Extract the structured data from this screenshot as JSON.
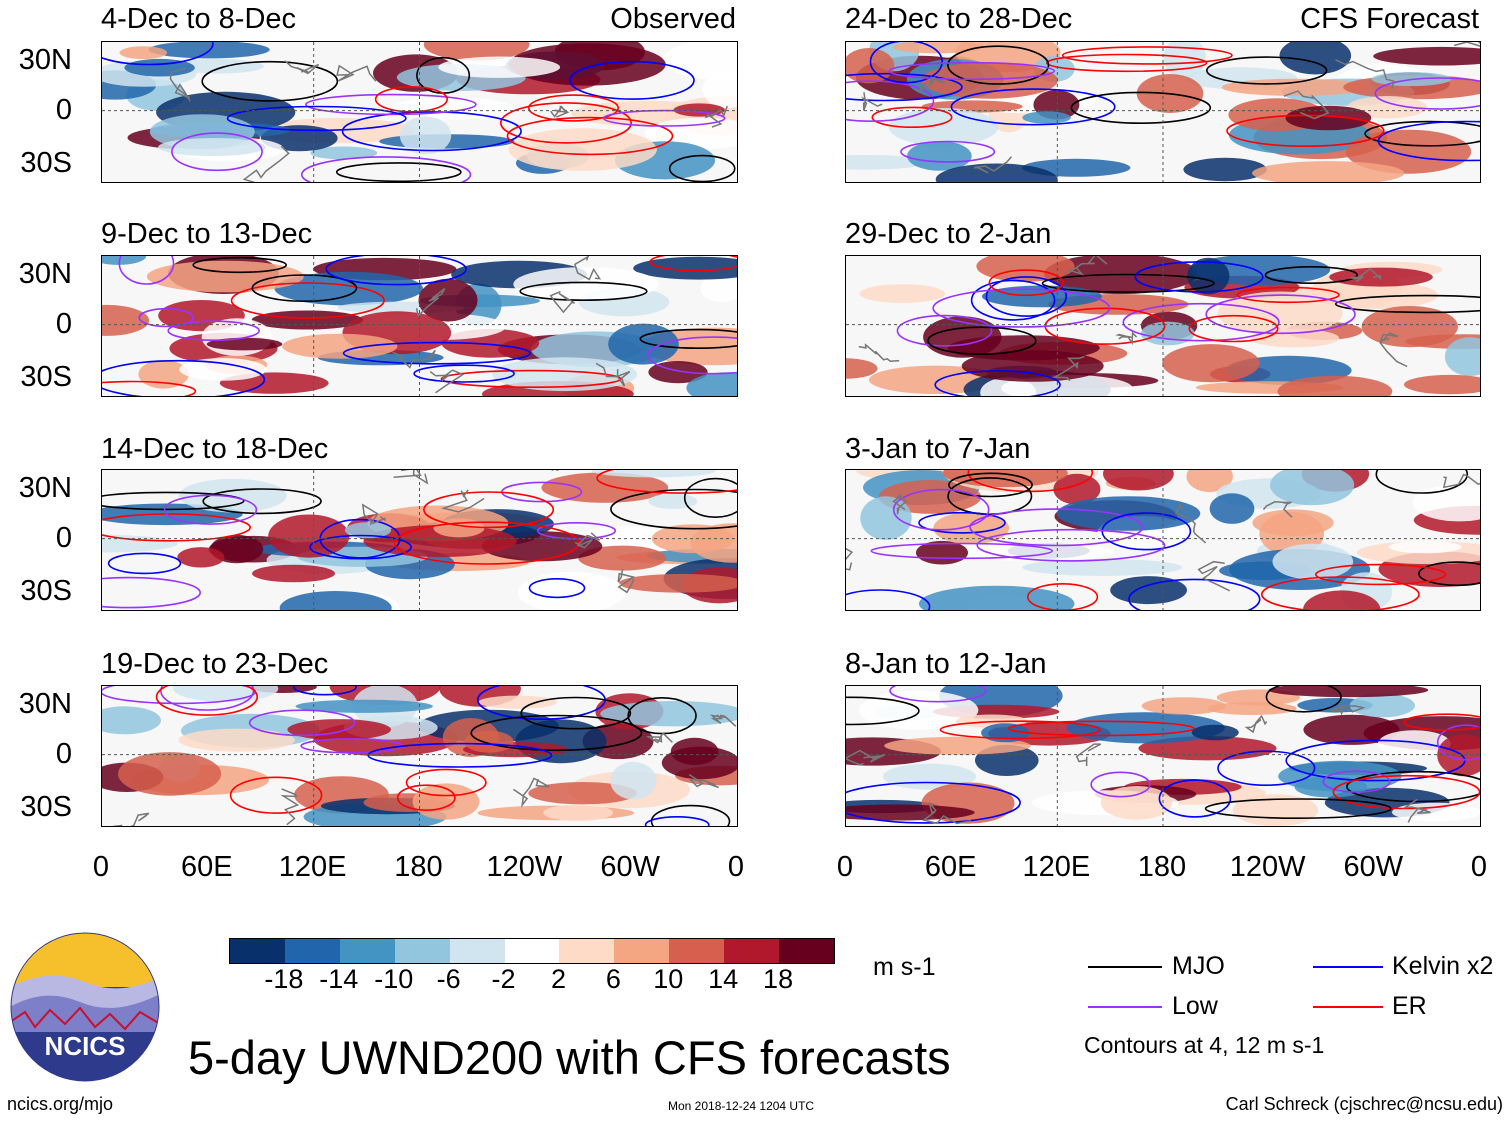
{
  "chart_data": {
    "type": "heatmap",
    "title": "5-day UWND200 with CFS forecasts",
    "units": "m s-1",
    "x_tick_labels": [
      "0",
      "60E",
      "120E",
      "180",
      "120W",
      "60W",
      "0"
    ],
    "y_tick_labels": [
      "30N",
      "0",
      "30S"
    ],
    "colorbar_ticks": [
      "-18",
      "-14",
      "-10",
      "-6",
      "-2",
      "2",
      "6",
      "10",
      "14",
      "18"
    ],
    "colorbar_colors": [
      "#08306b",
      "#2166ac",
      "#4393c3",
      "#92c5de",
      "#d1e5f0",
      "#ffffff",
      "#fddbc7",
      "#f4a582",
      "#d6604d",
      "#b2182b",
      "#67001f"
    ],
    "legend": [
      {
        "label": "MJO",
        "color": "#000000"
      },
      {
        "label": "Kelvin x2",
        "color": "#0000ff"
      },
      {
        "label": "Low",
        "color": "#9933ff"
      },
      {
        "label": "ER",
        "color": "#ff0000"
      }
    ],
    "contour_note": "Contours at 4, 12 m s-1",
    "panels": [
      {
        "period": "4-Dec to 8-Dec",
        "source": "Observed",
        "col": 0,
        "row": 0
      },
      {
        "period": "9-Dec to 13-Dec",
        "source": "",
        "col": 0,
        "row": 1
      },
      {
        "period": "14-Dec to 18-Dec",
        "source": "",
        "col": 0,
        "row": 2
      },
      {
        "period": "19-Dec to 23-Dec",
        "source": "",
        "col": 0,
        "row": 3
      },
      {
        "period": "24-Dec to 28-Dec",
        "source": "CFS Forecast",
        "col": 1,
        "row": 0
      },
      {
        "period": "29-Dec to 2-Jan",
        "source": "",
        "col": 1,
        "row": 1
      },
      {
        "period": "3-Jan to 7-Jan",
        "source": "",
        "col": 1,
        "row": 2
      },
      {
        "period": "8-Jan to 12-Jan",
        "source": "",
        "col": 1,
        "row": 3
      }
    ]
  },
  "logo_text": "NCICS",
  "footer": {
    "left": "ncics.org/mjo",
    "middle": "Mon 2018-12-24 1204 UTC",
    "right": "Carl Schreck (cjschrec@ncsu.edu)"
  }
}
